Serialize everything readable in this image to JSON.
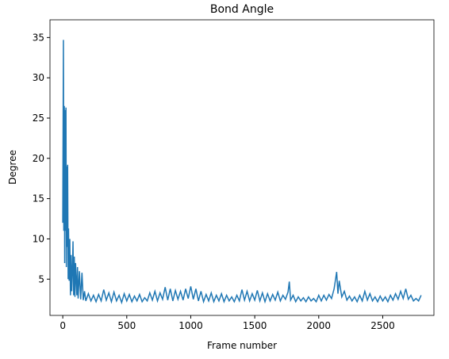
{
  "chart_data": {
    "type": "line",
    "title": "Bond Angle",
    "x_label": "Frame number",
    "y_label": "Degree",
    "color": "#1f77b4",
    "xlim": [
      -100,
      2900
    ],
    "xticks": [
      0,
      500,
      1000,
      1500,
      2000,
      2500
    ],
    "ylim": [
      0.5,
      37.2
    ],
    "yticks": [
      5,
      10,
      15,
      20,
      25,
      30,
      35
    ],
    "x": [
      0,
      5,
      8,
      12,
      15,
      18,
      22,
      25,
      28,
      32,
      35,
      38,
      42,
      45,
      50,
      55,
      60,
      65,
      70,
      75,
      80,
      85,
      90,
      95,
      100,
      110,
      115,
      120,
      130,
      140,
      150,
      160,
      170,
      180,
      200,
      220,
      240,
      260,
      280,
      300,
      320,
      340,
      360,
      380,
      400,
      420,
      440,
      460,
      480,
      500,
      520,
      540,
      560,
      580,
      600,
      620,
      640,
      660,
      680,
      700,
      720,
      740,
      760,
      780,
      800,
      820,
      840,
      860,
      880,
      900,
      920,
      940,
      960,
      980,
      1000,
      1020,
      1040,
      1060,
      1080,
      1100,
      1120,
      1140,
      1160,
      1180,
      1200,
      1220,
      1240,
      1260,
      1280,
      1300,
      1320,
      1340,
      1360,
      1380,
      1400,
      1420,
      1440,
      1460,
      1480,
      1500,
      1520,
      1540,
      1560,
      1580,
      1600,
      1620,
      1640,
      1660,
      1680,
      1700,
      1720,
      1740,
      1760,
      1770,
      1780,
      1800,
      1820,
      1840,
      1860,
      1880,
      1900,
      1920,
      1940,
      1960,
      1980,
      2000,
      2020,
      2040,
      2060,
      2080,
      2100,
      2120,
      2140,
      2150,
      2160,
      2180,
      2200,
      2220,
      2240,
      2260,
      2280,
      2300,
      2320,
      2340,
      2360,
      2380,
      2400,
      2420,
      2440,
      2460,
      2480,
      2500,
      2520,
      2540,
      2560,
      2580,
      2600,
      2620,
      2640,
      2660,
      2680,
      2700,
      2720,
      2740,
      2760,
      2780,
      2800
    ],
    "values": [
      12,
      34.7,
      11,
      26.5,
      7,
      26,
      11,
      26.3,
      6.5,
      19,
      9,
      19.2,
      5,
      11.3,
      4.8,
      10,
      3,
      8,
      3.5,
      6,
      9.7,
      3,
      7.8,
      2.8,
      7,
      3,
      6.5,
      2.6,
      6,
      2.5,
      5.8,
      2.4,
      3.5,
      2.3,
      3.2,
      2.3,
      3.0,
      2.2,
      3.1,
      2.3,
      3.7,
      2.4,
      3.3,
      2.2,
      3.4,
      2.3,
      3.0,
      2.1,
      3.2,
      2.3,
      3.1,
      2.2,
      2.9,
      2.3,
      3.1,
      2.2,
      2.7,
      2.3,
      3.3,
      2.4,
      3.5,
      2.3,
      3.3,
      2.5,
      4.0,
      2.4,
      3.8,
      2.3,
      3.6,
      2.5,
      3.5,
      2.4,
      3.8,
      2.6,
      4.1,
      2.5,
      3.8,
      2.3,
      3.5,
      2.2,
      3.1,
      2.3,
      3.3,
      2.2,
      3.0,
      2.3,
      3.2,
      2.2,
      3.0,
      2.3,
      2.8,
      2.2,
      3.0,
      2.3,
      3.7,
      2.4,
      3.5,
      2.3,
      3.2,
      2.4,
      3.6,
      2.3,
      3.3,
      2.2,
      3.2,
      2.3,
      3.1,
      2.4,
      3.4,
      2.3,
      3.0,
      2.5,
      3.4,
      4.7,
      2.4,
      3.0,
      2.2,
      2.8,
      2.3,
      2.7,
      2.2,
      2.8,
      2.3,
      2.6,
      2.2,
      3.0,
      2.3,
      3.0,
      2.4,
      3.1,
      2.6,
      3.8,
      5.9,
      3.2,
      4.8,
      2.8,
      3.5,
      2.4,
      2.9,
      2.3,
      2.8,
      2.2,
      3.0,
      2.3,
      3.5,
      2.4,
      3.2,
      2.3,
      2.8,
      2.2,
      2.9,
      2.3,
      2.8,
      2.2,
      3.0,
      2.4,
      3.2,
      2.5,
      3.5,
      2.6,
      3.8,
      2.5,
      3.0,
      2.3,
      2.6,
      2.3,
      3.0
    ]
  }
}
